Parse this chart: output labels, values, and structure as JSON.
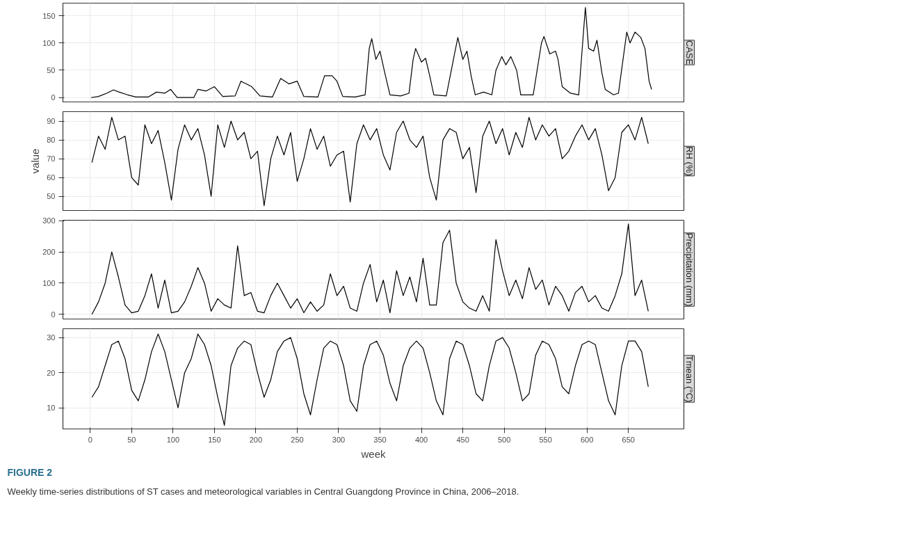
{
  "chart_data": [
    {
      "type": "line",
      "title": "CASE",
      "tick_labels": "y",
      "grid": true,
      "xlim": [
        -33,
        717
      ],
      "xticks": [
        0,
        50,
        100,
        150,
        200,
        250,
        300,
        350,
        400,
        450,
        500,
        550,
        600,
        650
      ],
      "ylim": [
        -8,
        173
      ],
      "yticks": [
        0,
        50,
        100,
        150
      ],
      "series": [
        {
          "color": "#000000",
          "x": [
            1,
            10,
            20,
            28,
            35,
            45,
            55,
            70,
            80,
            90,
            97,
            105,
            125,
            130,
            140,
            150,
            160,
            175,
            182,
            195,
            205,
            220,
            230,
            240,
            250,
            258,
            275,
            283,
            292,
            298,
            305,
            320,
            332,
            337,
            340,
            345,
            350,
            355,
            362,
            375,
            385,
            390,
            393,
            400,
            405,
            410,
            415,
            430,
            440,
            444,
            450,
            455,
            460,
            465,
            475,
            485,
            490,
            497,
            502,
            508,
            515,
            520,
            535,
            545,
            548,
            555,
            562,
            565,
            570,
            580,
            590,
            598,
            602,
            608,
            612,
            618,
            622,
            632,
            638,
            648,
            652,
            658,
            665,
            670,
            675,
            678
          ],
          "values": [
            0,
            2,
            8,
            14,
            10,
            5,
            1,
            1,
            10,
            8,
            15,
            0,
            0,
            15,
            12,
            20,
            2,
            3,
            30,
            20,
            3,
            1,
            35,
            25,
            30,
            2,
            1,
            40,
            40,
            30,
            2,
            1,
            5,
            90,
            108,
            70,
            85,
            50,
            5,
            3,
            8,
            70,
            90,
            65,
            72,
            40,
            5,
            3,
            80,
            110,
            70,
            85,
            40,
            5,
            10,
            5,
            50,
            75,
            60,
            75,
            50,
            5,
            5,
            100,
            112,
            80,
            85,
            70,
            20,
            8,
            5,
            165,
            90,
            85,
            105,
            45,
            15,
            5,
            8,
            120,
            100,
            120,
            110,
            90,
            30,
            15
          ]
        }
      ]
    },
    {
      "type": "line",
      "title": "RH (%)",
      "ylabel": "value",
      "tick_labels": "y",
      "grid": true,
      "xlim": [
        -33,
        717
      ],
      "xticks": [
        0,
        50,
        100,
        150,
        200,
        250,
        300,
        350,
        400,
        450,
        500,
        550,
        600,
        650
      ],
      "ylim": [
        42.5,
        95
      ],
      "yticks": [
        50,
        60,
        70,
        80,
        90
      ],
      "series": [
        {
          "color": "#000000",
          "x": [
            2,
            10,
            18,
            26,
            34,
            42,
            50,
            58,
            66,
            74,
            82,
            90,
            98,
            106,
            114,
            122,
            130,
            138,
            146,
            154,
            162,
            170,
            178,
            186,
            194,
            202,
            210,
            218,
            226,
            234,
            242,
            250,
            258,
            266,
            274,
            282,
            290,
            298,
            306,
            314,
            322,
            330,
            338,
            346,
            354,
            362,
            370,
            378,
            386,
            394,
            402,
            410,
            418,
            426,
            434,
            442,
            450,
            458,
            466,
            474,
            482,
            490,
            498,
            506,
            514,
            522,
            530,
            538,
            546,
            554,
            562,
            570,
            578,
            586,
            594,
            602,
            610,
            618,
            626,
            634,
            642,
            650,
            658,
            666,
            674
          ],
          "values": [
            68,
            82,
            75,
            92,
            80,
            82,
            60,
            56,
            88,
            78,
            85,
            68,
            48,
            75,
            88,
            80,
            86,
            72,
            50,
            88,
            76,
            90,
            80,
            84,
            70,
            74,
            45,
            70,
            82,
            72,
            84,
            58,
            70,
            86,
            75,
            82,
            66,
            72,
            74,
            47,
            78,
            88,
            80,
            86,
            72,
            64,
            84,
            90,
            80,
            76,
            82,
            60,
            48,
            80,
            86,
            84,
            70,
            76,
            52,
            82,
            90,
            78,
            86,
            72,
            84,
            76,
            92,
            80,
            88,
            82,
            86,
            70,
            74,
            82,
            88,
            80,
            86,
            72,
            53,
            60,
            84,
            88,
            80,
            92,
            78
          ]
        }
      ]
    },
    {
      "type": "line",
      "title": "Precipitation (mm)",
      "tick_labels": "y",
      "grid": true,
      "xlim": [
        -33,
        717
      ],
      "xticks": [
        0,
        50,
        100,
        150,
        200,
        250,
        300,
        350,
        400,
        450,
        500,
        550,
        600,
        650
      ],
      "ylim": [
        -15,
        302
      ],
      "yticks": [
        0,
        100,
        200,
        300
      ],
      "series": [
        {
          "color": "#000000",
          "x": [
            2,
            10,
            18,
            26,
            34,
            42,
            50,
            58,
            66,
            74,
            82,
            90,
            98,
            106,
            114,
            122,
            130,
            138,
            146,
            154,
            162,
            170,
            178,
            186,
            194,
            202,
            210,
            218,
            226,
            234,
            242,
            250,
            258,
            266,
            274,
            282,
            290,
            298,
            306,
            314,
            322,
            330,
            338,
            346,
            354,
            362,
            370,
            378,
            386,
            394,
            402,
            410,
            418,
            426,
            434,
            442,
            450,
            458,
            466,
            474,
            482,
            490,
            498,
            506,
            514,
            522,
            530,
            538,
            546,
            554,
            562,
            570,
            578,
            586,
            594,
            602,
            610,
            618,
            626,
            634,
            642,
            650,
            658,
            666,
            674
          ],
          "values": [
            0,
            40,
            100,
            200,
            120,
            30,
            5,
            10,
            60,
            130,
            20,
            110,
            5,
            10,
            40,
            90,
            150,
            100,
            10,
            50,
            30,
            20,
            220,
            60,
            70,
            10,
            5,
            60,
            100,
            60,
            20,
            50,
            5,
            40,
            10,
            30,
            130,
            60,
            90,
            20,
            10,
            100,
            160,
            40,
            110,
            5,
            140,
            60,
            120,
            40,
            180,
            30,
            30,
            230,
            270,
            100,
            40,
            20,
            10,
            60,
            10,
            240,
            140,
            60,
            110,
            50,
            150,
            80,
            110,
            30,
            90,
            60,
            10,
            70,
            90,
            40,
            60,
            20,
            10,
            60,
            130,
            290,
            60,
            110,
            10
          ]
        }
      ]
    },
    {
      "type": "line",
      "title": "Tmean (°C)",
      "xlabel": "week",
      "grid": true,
      "xlim": [
        -33,
        717
      ],
      "xticks": [
        0,
        50,
        100,
        150,
        200,
        250,
        300,
        350,
        400,
        450,
        500,
        550,
        600,
        650
      ],
      "ylim": [
        4,
        32.5
      ],
      "yticks": [
        10,
        20,
        30
      ],
      "annotations": [
        "FIGURE 2",
        "Weekly time-series distributions of ST cases and meteorological variables in Central Guangdong Province in China, 2006–2018."
      ],
      "series": [
        {
          "color": "#000000",
          "x": [
            2,
            10,
            18,
            26,
            34,
            42,
            50,
            58,
            66,
            74,
            82,
            90,
            98,
            106,
            114,
            122,
            130,
            138,
            146,
            154,
            162,
            170,
            178,
            186,
            194,
            202,
            210,
            218,
            226,
            234,
            242,
            250,
            258,
            266,
            274,
            282,
            290,
            298,
            306,
            314,
            322,
            330,
            338,
            346,
            354,
            362,
            370,
            378,
            386,
            394,
            402,
            410,
            418,
            426,
            434,
            442,
            450,
            458,
            466,
            474,
            482,
            490,
            498,
            506,
            514,
            522,
            530,
            538,
            546,
            554,
            562,
            570,
            578,
            586,
            594,
            602,
            610,
            618,
            626,
            634,
            642,
            650,
            658,
            666,
            674
          ],
          "values": [
            13,
            16,
            22,
            28,
            29,
            24,
            15,
            12,
            18,
            26,
            31,
            26,
            18,
            10,
            20,
            24,
            31,
            28,
            22,
            13,
            5,
            22,
            27,
            29,
            28,
            20,
            13,
            18,
            26,
            29,
            30,
            24,
            14,
            8,
            18,
            27,
            29,
            28,
            22,
            12,
            9,
            22,
            28,
            29,
            25,
            17,
            12,
            22,
            27,
            29,
            27,
            20,
            12,
            8,
            24,
            29,
            28,
            22,
            14,
            12,
            22,
            29,
            30,
            27,
            20,
            12,
            14,
            25,
            29,
            28,
            24,
            16,
            14,
            22,
            28,
            29,
            28,
            20,
            12,
            8,
            22,
            29,
            29,
            26,
            16
          ]
        }
      ]
    }
  ]
}
